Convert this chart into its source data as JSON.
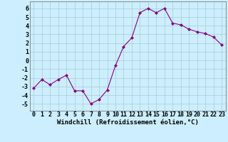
{
  "x": [
    0,
    1,
    2,
    3,
    4,
    5,
    6,
    7,
    8,
    9,
    10,
    11,
    12,
    13,
    14,
    15,
    16,
    17,
    18,
    19,
    20,
    21,
    22,
    23
  ],
  "y": [
    -3.2,
    -2.2,
    -2.8,
    -2.2,
    -1.7,
    -3.5,
    -3.5,
    -5.0,
    -4.5,
    -3.4,
    -0.6,
    1.6,
    2.6,
    5.5,
    6.0,
    5.5,
    6.0,
    4.3,
    4.1,
    3.6,
    3.3,
    3.1,
    2.7,
    1.8
  ],
  "line_color": "#880088",
  "marker": "D",
  "marker_size": 2.0,
  "bg_color": "#cceeff",
  "grid_color": "#aacccc",
  "xlabel": "Windchill (Refroidissement éolien,°C)",
  "xlabel_fontsize": 6.5,
  "tick_fontsize": 6,
  "ylim": [
    -5.8,
    6.8
  ],
  "xlim": [
    -0.5,
    23.5
  ],
  "yticks": [
    -5,
    -4,
    -3,
    -2,
    -1,
    0,
    1,
    2,
    3,
    4,
    5,
    6
  ],
  "xtick_labels": [
    "0",
    "1",
    "2",
    "3",
    "4",
    "5",
    "6",
    "7",
    "8",
    "9",
    "10",
    "11",
    "12",
    "13",
    "14",
    "15",
    "16",
    "17",
    "18",
    "19",
    "20",
    "21",
    "22",
    "23"
  ]
}
